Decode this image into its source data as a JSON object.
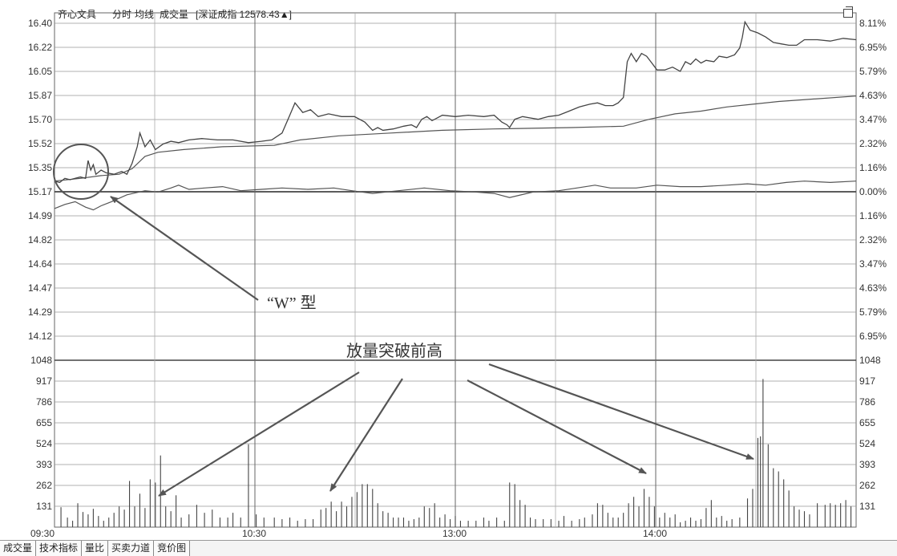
{
  "header": {
    "stock_name": "齐心文具",
    "items": [
      "分时",
      "均线",
      "成交量"
    ],
    "index_text": "[深证成指 12578.43▲]"
  },
  "price_axis_left": [
    "16.40",
    "16.22",
    "16.05",
    "15.87",
    "15.70",
    "15.52",
    "15.35",
    "15.17",
    "14.99",
    "14.82",
    "14.64",
    "14.47",
    "14.29",
    "14.12"
  ],
  "price_axis_right": [
    "8.11%",
    "6.95%",
    "5.79%",
    "4.63%",
    "3.47%",
    "2.32%",
    "1.16%",
    "0.00%",
    "1.16%",
    "2.32%",
    "3.47%",
    "4.63%",
    "5.79%",
    "6.95%"
  ],
  "volume_axis": [
    "1048",
    "917",
    "786",
    "655",
    "524",
    "393",
    "262",
    "131"
  ],
  "time_axis": [
    "09:30",
    "10:30",
    "13:00",
    "14:00"
  ],
  "annotations": {
    "w_shape": "“W” 型",
    "volume_break": "放量突破前高"
  },
  "tabs": [
    "成交量",
    "技术指标",
    "量比",
    "买卖力道",
    "竞价图"
  ],
  "chart_data": {
    "type": "line",
    "price_series": [
      {
        "t": 0,
        "v": 15.25
      },
      {
        "t": 4,
        "v": 15.24
      },
      {
        "t": 8,
        "v": 15.27
      },
      {
        "t": 12,
        "v": 15.26
      },
      {
        "t": 16,
        "v": 15.27
      },
      {
        "t": 20,
        "v": 15.28
      },
      {
        "t": 24,
        "v": 15.27
      },
      {
        "t": 26,
        "v": 15.4
      },
      {
        "t": 28,
        "v": 15.33
      },
      {
        "t": 30,
        "v": 15.37
      },
      {
        "t": 32,
        "v": 15.3
      },
      {
        "t": 36,
        "v": 15.33
      },
      {
        "t": 40,
        "v": 15.31
      },
      {
        "t": 46,
        "v": 15.3
      },
      {
        "t": 52,
        "v": 15.32
      },
      {
        "t": 56,
        "v": 15.3
      },
      {
        "t": 60,
        "v": 15.38
      },
      {
        "t": 64,
        "v": 15.5
      },
      {
        "t": 66,
        "v": 15.6
      },
      {
        "t": 70,
        "v": 15.5
      },
      {
        "t": 74,
        "v": 15.55
      },
      {
        "t": 78,
        "v": 15.48
      },
      {
        "t": 84,
        "v": 15.52
      },
      {
        "t": 90,
        "v": 15.54
      },
      {
        "t": 96,
        "v": 15.53
      },
      {
        "t": 104,
        "v": 15.55
      },
      {
        "t": 114,
        "v": 15.56
      },
      {
        "t": 126,
        "v": 15.55
      },
      {
        "t": 138,
        "v": 15.55
      },
      {
        "t": 150,
        "v": 15.53
      },
      {
        "t": 160,
        "v": 15.54
      },
      {
        "t": 168,
        "v": 15.55
      },
      {
        "t": 176,
        "v": 15.6
      },
      {
        "t": 182,
        "v": 15.73
      },
      {
        "t": 186,
        "v": 15.82
      },
      {
        "t": 192,
        "v": 15.75
      },
      {
        "t": 198,
        "v": 15.77
      },
      {
        "t": 204,
        "v": 15.72
      },
      {
        "t": 212,
        "v": 15.74
      },
      {
        "t": 222,
        "v": 15.72
      },
      {
        "t": 232,
        "v": 15.72
      },
      {
        "t": 240,
        "v": 15.68
      },
      {
        "t": 246,
        "v": 15.62
      },
      {
        "t": 250,
        "v": 15.64
      },
      {
        "t": 254,
        "v": 15.62
      },
      {
        "t": 262,
        "v": 15.63
      },
      {
        "t": 270,
        "v": 15.65
      },
      {
        "t": 276,
        "v": 15.66
      },
      {
        "t": 280,
        "v": 15.64
      },
      {
        "t": 284,
        "v": 15.7
      },
      {
        "t": 288,
        "v": 15.72
      },
      {
        "t": 292,
        "v": 15.69
      },
      {
        "t": 300,
        "v": 15.73
      },
      {
        "t": 310,
        "v": 15.72
      },
      {
        "t": 320,
        "v": 15.73
      },
      {
        "t": 332,
        "v": 15.72
      },
      {
        "t": 340,
        "v": 15.73
      },
      {
        "t": 346,
        "v": 15.68
      },
      {
        "t": 350,
        "v": 15.66
      },
      {
        "t": 352,
        "v": 15.64
      },
      {
        "t": 356,
        "v": 15.7
      },
      {
        "t": 362,
        "v": 15.72
      },
      {
        "t": 368,
        "v": 15.71
      },
      {
        "t": 374,
        "v": 15.7
      },
      {
        "t": 382,
        "v": 15.72
      },
      {
        "t": 390,
        "v": 15.73
      },
      {
        "t": 398,
        "v": 15.76
      },
      {
        "t": 406,
        "v": 15.79
      },
      {
        "t": 414,
        "v": 15.81
      },
      {
        "t": 420,
        "v": 15.82
      },
      {
        "t": 426,
        "v": 15.8
      },
      {
        "t": 432,
        "v": 15.8
      },
      {
        "t": 436,
        "v": 15.82
      },
      {
        "t": 440,
        "v": 15.86
      },
      {
        "t": 443,
        "v": 16.12
      },
      {
        "t": 446,
        "v": 16.18
      },
      {
        "t": 450,
        "v": 16.12
      },
      {
        "t": 454,
        "v": 16.18
      },
      {
        "t": 458,
        "v": 16.16
      },
      {
        "t": 462,
        "v": 16.11
      },
      {
        "t": 466,
        "v": 16.06
      },
      {
        "t": 472,
        "v": 16.06
      },
      {
        "t": 478,
        "v": 16.08
      },
      {
        "t": 484,
        "v": 16.05
      },
      {
        "t": 488,
        "v": 16.12
      },
      {
        "t": 492,
        "v": 16.1
      },
      {
        "t": 496,
        "v": 16.14
      },
      {
        "t": 500,
        "v": 16.11
      },
      {
        "t": 504,
        "v": 16.13
      },
      {
        "t": 510,
        "v": 16.12
      },
      {
        "t": 514,
        "v": 16.16
      },
      {
        "t": 520,
        "v": 16.15
      },
      {
        "t": 526,
        "v": 16.17
      },
      {
        "t": 530,
        "v": 16.22
      },
      {
        "t": 532,
        "v": 16.3
      },
      {
        "t": 534,
        "v": 16.41
      },
      {
        "t": 538,
        "v": 16.35
      },
      {
        "t": 544,
        "v": 16.33
      },
      {
        "t": 550,
        "v": 16.3
      },
      {
        "t": 556,
        "v": 16.26
      },
      {
        "t": 562,
        "v": 16.25
      },
      {
        "t": 568,
        "v": 16.24
      },
      {
        "t": 574,
        "v": 16.24
      },
      {
        "t": 580,
        "v": 16.28
      },
      {
        "t": 590,
        "v": 16.28
      },
      {
        "t": 600,
        "v": 16.27
      },
      {
        "t": 610,
        "v": 16.29
      },
      {
        "t": 620,
        "v": 16.28
      }
    ],
    "avg_series": [
      {
        "t": 0,
        "v": 15.25
      },
      {
        "t": 20,
        "v": 15.27
      },
      {
        "t": 36,
        "v": 15.29
      },
      {
        "t": 50,
        "v": 15.3
      },
      {
        "t": 60,
        "v": 15.34
      },
      {
        "t": 70,
        "v": 15.43
      },
      {
        "t": 80,
        "v": 15.46
      },
      {
        "t": 100,
        "v": 15.48
      },
      {
        "t": 130,
        "v": 15.5
      },
      {
        "t": 170,
        "v": 15.51
      },
      {
        "t": 190,
        "v": 15.55
      },
      {
        "t": 220,
        "v": 15.58
      },
      {
        "t": 260,
        "v": 15.6
      },
      {
        "t": 300,
        "v": 15.62
      },
      {
        "t": 340,
        "v": 15.63
      },
      {
        "t": 400,
        "v": 15.64
      },
      {
        "t": 440,
        "v": 15.65
      },
      {
        "t": 460,
        "v": 15.7
      },
      {
        "t": 480,
        "v": 15.74
      },
      {
        "t": 500,
        "v": 15.76
      },
      {
        "t": 520,
        "v": 15.79
      },
      {
        "t": 540,
        "v": 15.81
      },
      {
        "t": 560,
        "v": 15.83
      },
      {
        "t": 590,
        "v": 15.85
      },
      {
        "t": 620,
        "v": 15.87
      }
    ],
    "index_series": [
      {
        "t": 0,
        "v": 15.05
      },
      {
        "t": 8,
        "v": 15.08
      },
      {
        "t": 16,
        "v": 15.1
      },
      {
        "t": 24,
        "v": 15.06
      },
      {
        "t": 30,
        "v": 15.04
      },
      {
        "t": 36,
        "v": 15.07
      },
      {
        "t": 44,
        "v": 15.1
      },
      {
        "t": 56,
        "v": 15.15
      },
      {
        "t": 70,
        "v": 15.18
      },
      {
        "t": 80,
        "v": 15.17
      },
      {
        "t": 90,
        "v": 15.2
      },
      {
        "t": 96,
        "v": 15.22
      },
      {
        "t": 104,
        "v": 15.19
      },
      {
        "t": 116,
        "v": 15.2
      },
      {
        "t": 130,
        "v": 15.21
      },
      {
        "t": 144,
        "v": 15.18
      },
      {
        "t": 160,
        "v": 15.19
      },
      {
        "t": 176,
        "v": 15.2
      },
      {
        "t": 196,
        "v": 15.19
      },
      {
        "t": 216,
        "v": 15.2
      },
      {
        "t": 230,
        "v": 15.18
      },
      {
        "t": 246,
        "v": 15.16
      },
      {
        "t": 266,
        "v": 15.18
      },
      {
        "t": 286,
        "v": 15.2
      },
      {
        "t": 306,
        "v": 15.18
      },
      {
        "t": 326,
        "v": 15.17
      },
      {
        "t": 340,
        "v": 15.16
      },
      {
        "t": 352,
        "v": 15.13
      },
      {
        "t": 370,
        "v": 15.17
      },
      {
        "t": 390,
        "v": 15.18
      },
      {
        "t": 404,
        "v": 15.2
      },
      {
        "t": 418,
        "v": 15.22
      },
      {
        "t": 430,
        "v": 15.2
      },
      {
        "t": 450,
        "v": 15.2
      },
      {
        "t": 466,
        "v": 15.22
      },
      {
        "t": 484,
        "v": 15.21
      },
      {
        "t": 500,
        "v": 15.21
      },
      {
        "t": 520,
        "v": 15.22
      },
      {
        "t": 536,
        "v": 15.23
      },
      {
        "t": 550,
        "v": 15.22
      },
      {
        "t": 566,
        "v": 15.24
      },
      {
        "t": 580,
        "v": 15.25
      },
      {
        "t": 600,
        "v": 15.24
      },
      {
        "t": 620,
        "v": 15.25
      }
    ],
    "volume": [
      {
        "t": 5,
        "v": 125
      },
      {
        "t": 10,
        "v": 60
      },
      {
        "t": 14,
        "v": 40
      },
      {
        "t": 18,
        "v": 150
      },
      {
        "t": 22,
        "v": 95
      },
      {
        "t": 26,
        "v": 80
      },
      {
        "t": 30,
        "v": 115
      },
      {
        "t": 34,
        "v": 70
      },
      {
        "t": 38,
        "v": 40
      },
      {
        "t": 42,
        "v": 60
      },
      {
        "t": 46,
        "v": 90
      },
      {
        "t": 50,
        "v": 130
      },
      {
        "t": 54,
        "v": 110
      },
      {
        "t": 58,
        "v": 290
      },
      {
        "t": 62,
        "v": 130
      },
      {
        "t": 66,
        "v": 210
      },
      {
        "t": 70,
        "v": 120
      },
      {
        "t": 74,
        "v": 300
      },
      {
        "t": 78,
        "v": 280
      },
      {
        "t": 82,
        "v": 450
      },
      {
        "t": 86,
        "v": 130
      },
      {
        "t": 90,
        "v": 100
      },
      {
        "t": 94,
        "v": 200
      },
      {
        "t": 98,
        "v": 60
      },
      {
        "t": 104,
        "v": 80
      },
      {
        "t": 110,
        "v": 140
      },
      {
        "t": 116,
        "v": 90
      },
      {
        "t": 122,
        "v": 110
      },
      {
        "t": 128,
        "v": 60
      },
      {
        "t": 134,
        "v": 60
      },
      {
        "t": 138,
        "v": 90
      },
      {
        "t": 144,
        "v": 60
      },
      {
        "t": 150,
        "v": 520
      },
      {
        "t": 156,
        "v": 80
      },
      {
        "t": 162,
        "v": 60
      },
      {
        "t": 170,
        "v": 60
      },
      {
        "t": 176,
        "v": 50
      },
      {
        "t": 182,
        "v": 60
      },
      {
        "t": 188,
        "v": 40
      },
      {
        "t": 194,
        "v": 50
      },
      {
        "t": 200,
        "v": 50
      },
      {
        "t": 206,
        "v": 110
      },
      {
        "t": 210,
        "v": 120
      },
      {
        "t": 214,
        "v": 160
      },
      {
        "t": 218,
        "v": 100
      },
      {
        "t": 222,
        "v": 160
      },
      {
        "t": 226,
        "v": 130
      },
      {
        "t": 230,
        "v": 190
      },
      {
        "t": 234,
        "v": 220
      },
      {
        "t": 238,
        "v": 270
      },
      {
        "t": 242,
        "v": 270
      },
      {
        "t": 246,
        "v": 240
      },
      {
        "t": 250,
        "v": 150
      },
      {
        "t": 254,
        "v": 100
      },
      {
        "t": 258,
        "v": 90
      },
      {
        "t": 262,
        "v": 60
      },
      {
        "t": 266,
        "v": 60
      },
      {
        "t": 270,
        "v": 60
      },
      {
        "t": 274,
        "v": 40
      },
      {
        "t": 278,
        "v": 50
      },
      {
        "t": 282,
        "v": 60
      },
      {
        "t": 286,
        "v": 130
      },
      {
        "t": 290,
        "v": 120
      },
      {
        "t": 294,
        "v": 150
      },
      {
        "t": 298,
        "v": 60
      },
      {
        "t": 302,
        "v": 80
      },
      {
        "t": 306,
        "v": 50
      },
      {
        "t": 310,
        "v": 70
      },
      {
        "t": 314,
        "v": 40
      },
      {
        "t": 320,
        "v": 40
      },
      {
        "t": 326,
        "v": 40
      },
      {
        "t": 332,
        "v": 60
      },
      {
        "t": 336,
        "v": 40
      },
      {
        "t": 342,
        "v": 60
      },
      {
        "t": 348,
        "v": 40
      },
      {
        "t": 352,
        "v": 280
      },
      {
        "t": 356,
        "v": 270
      },
      {
        "t": 360,
        "v": 170
      },
      {
        "t": 364,
        "v": 140
      },
      {
        "t": 368,
        "v": 60
      },
      {
        "t": 372,
        "v": 50
      },
      {
        "t": 378,
        "v": 50
      },
      {
        "t": 384,
        "v": 50
      },
      {
        "t": 390,
        "v": 40
      },
      {
        "t": 394,
        "v": 70
      },
      {
        "t": 400,
        "v": 40
      },
      {
        "t": 406,
        "v": 50
      },
      {
        "t": 410,
        "v": 60
      },
      {
        "t": 416,
        "v": 80
      },
      {
        "t": 420,
        "v": 150
      },
      {
        "t": 424,
        "v": 140
      },
      {
        "t": 428,
        "v": 90
      },
      {
        "t": 432,
        "v": 60
      },
      {
        "t": 436,
        "v": 60
      },
      {
        "t": 440,
        "v": 90
      },
      {
        "t": 444,
        "v": 150
      },
      {
        "t": 448,
        "v": 190
      },
      {
        "t": 452,
        "v": 130
      },
      {
        "t": 456,
        "v": 240
      },
      {
        "t": 460,
        "v": 190
      },
      {
        "t": 464,
        "v": 130
      },
      {
        "t": 468,
        "v": 60
      },
      {
        "t": 472,
        "v": 90
      },
      {
        "t": 476,
        "v": 60
      },
      {
        "t": 480,
        "v": 80
      },
      {
        "t": 484,
        "v": 30
      },
      {
        "t": 488,
        "v": 40
      },
      {
        "t": 492,
        "v": 60
      },
      {
        "t": 496,
        "v": 40
      },
      {
        "t": 500,
        "v": 50
      },
      {
        "t": 504,
        "v": 120
      },
      {
        "t": 508,
        "v": 170
      },
      {
        "t": 512,
        "v": 60
      },
      {
        "t": 516,
        "v": 70
      },
      {
        "t": 520,
        "v": 40
      },
      {
        "t": 524,
        "v": 50
      },
      {
        "t": 530,
        "v": 60
      },
      {
        "t": 536,
        "v": 180
      },
      {
        "t": 540,
        "v": 240
      },
      {
        "t": 544,
        "v": 560
      },
      {
        "t": 546,
        "v": 570
      },
      {
        "t": 548,
        "v": 930
      },
      {
        "t": 552,
        "v": 520
      },
      {
        "t": 556,
        "v": 370
      },
      {
        "t": 560,
        "v": 350
      },
      {
        "t": 564,
        "v": 300
      },
      {
        "t": 568,
        "v": 230
      },
      {
        "t": 572,
        "v": 130
      },
      {
        "t": 576,
        "v": 110
      },
      {
        "t": 580,
        "v": 100
      },
      {
        "t": 584,
        "v": 80
      },
      {
        "t": 590,
        "v": 150
      },
      {
        "t": 596,
        "v": 140
      },
      {
        "t": 600,
        "v": 150
      },
      {
        "t": 604,
        "v": 140
      },
      {
        "t": 608,
        "v": 150
      },
      {
        "t": 612,
        "v": 170
      },
      {
        "t": 616,
        "v": 130
      }
    ],
    "ylim": [
      14.12,
      16.4
    ],
    "volume_ylim": [
      0,
      1048
    ],
    "x_ticks": [
      "09:30",
      "10:30",
      "13:00",
      "14:00"
    ],
    "grid": true
  }
}
